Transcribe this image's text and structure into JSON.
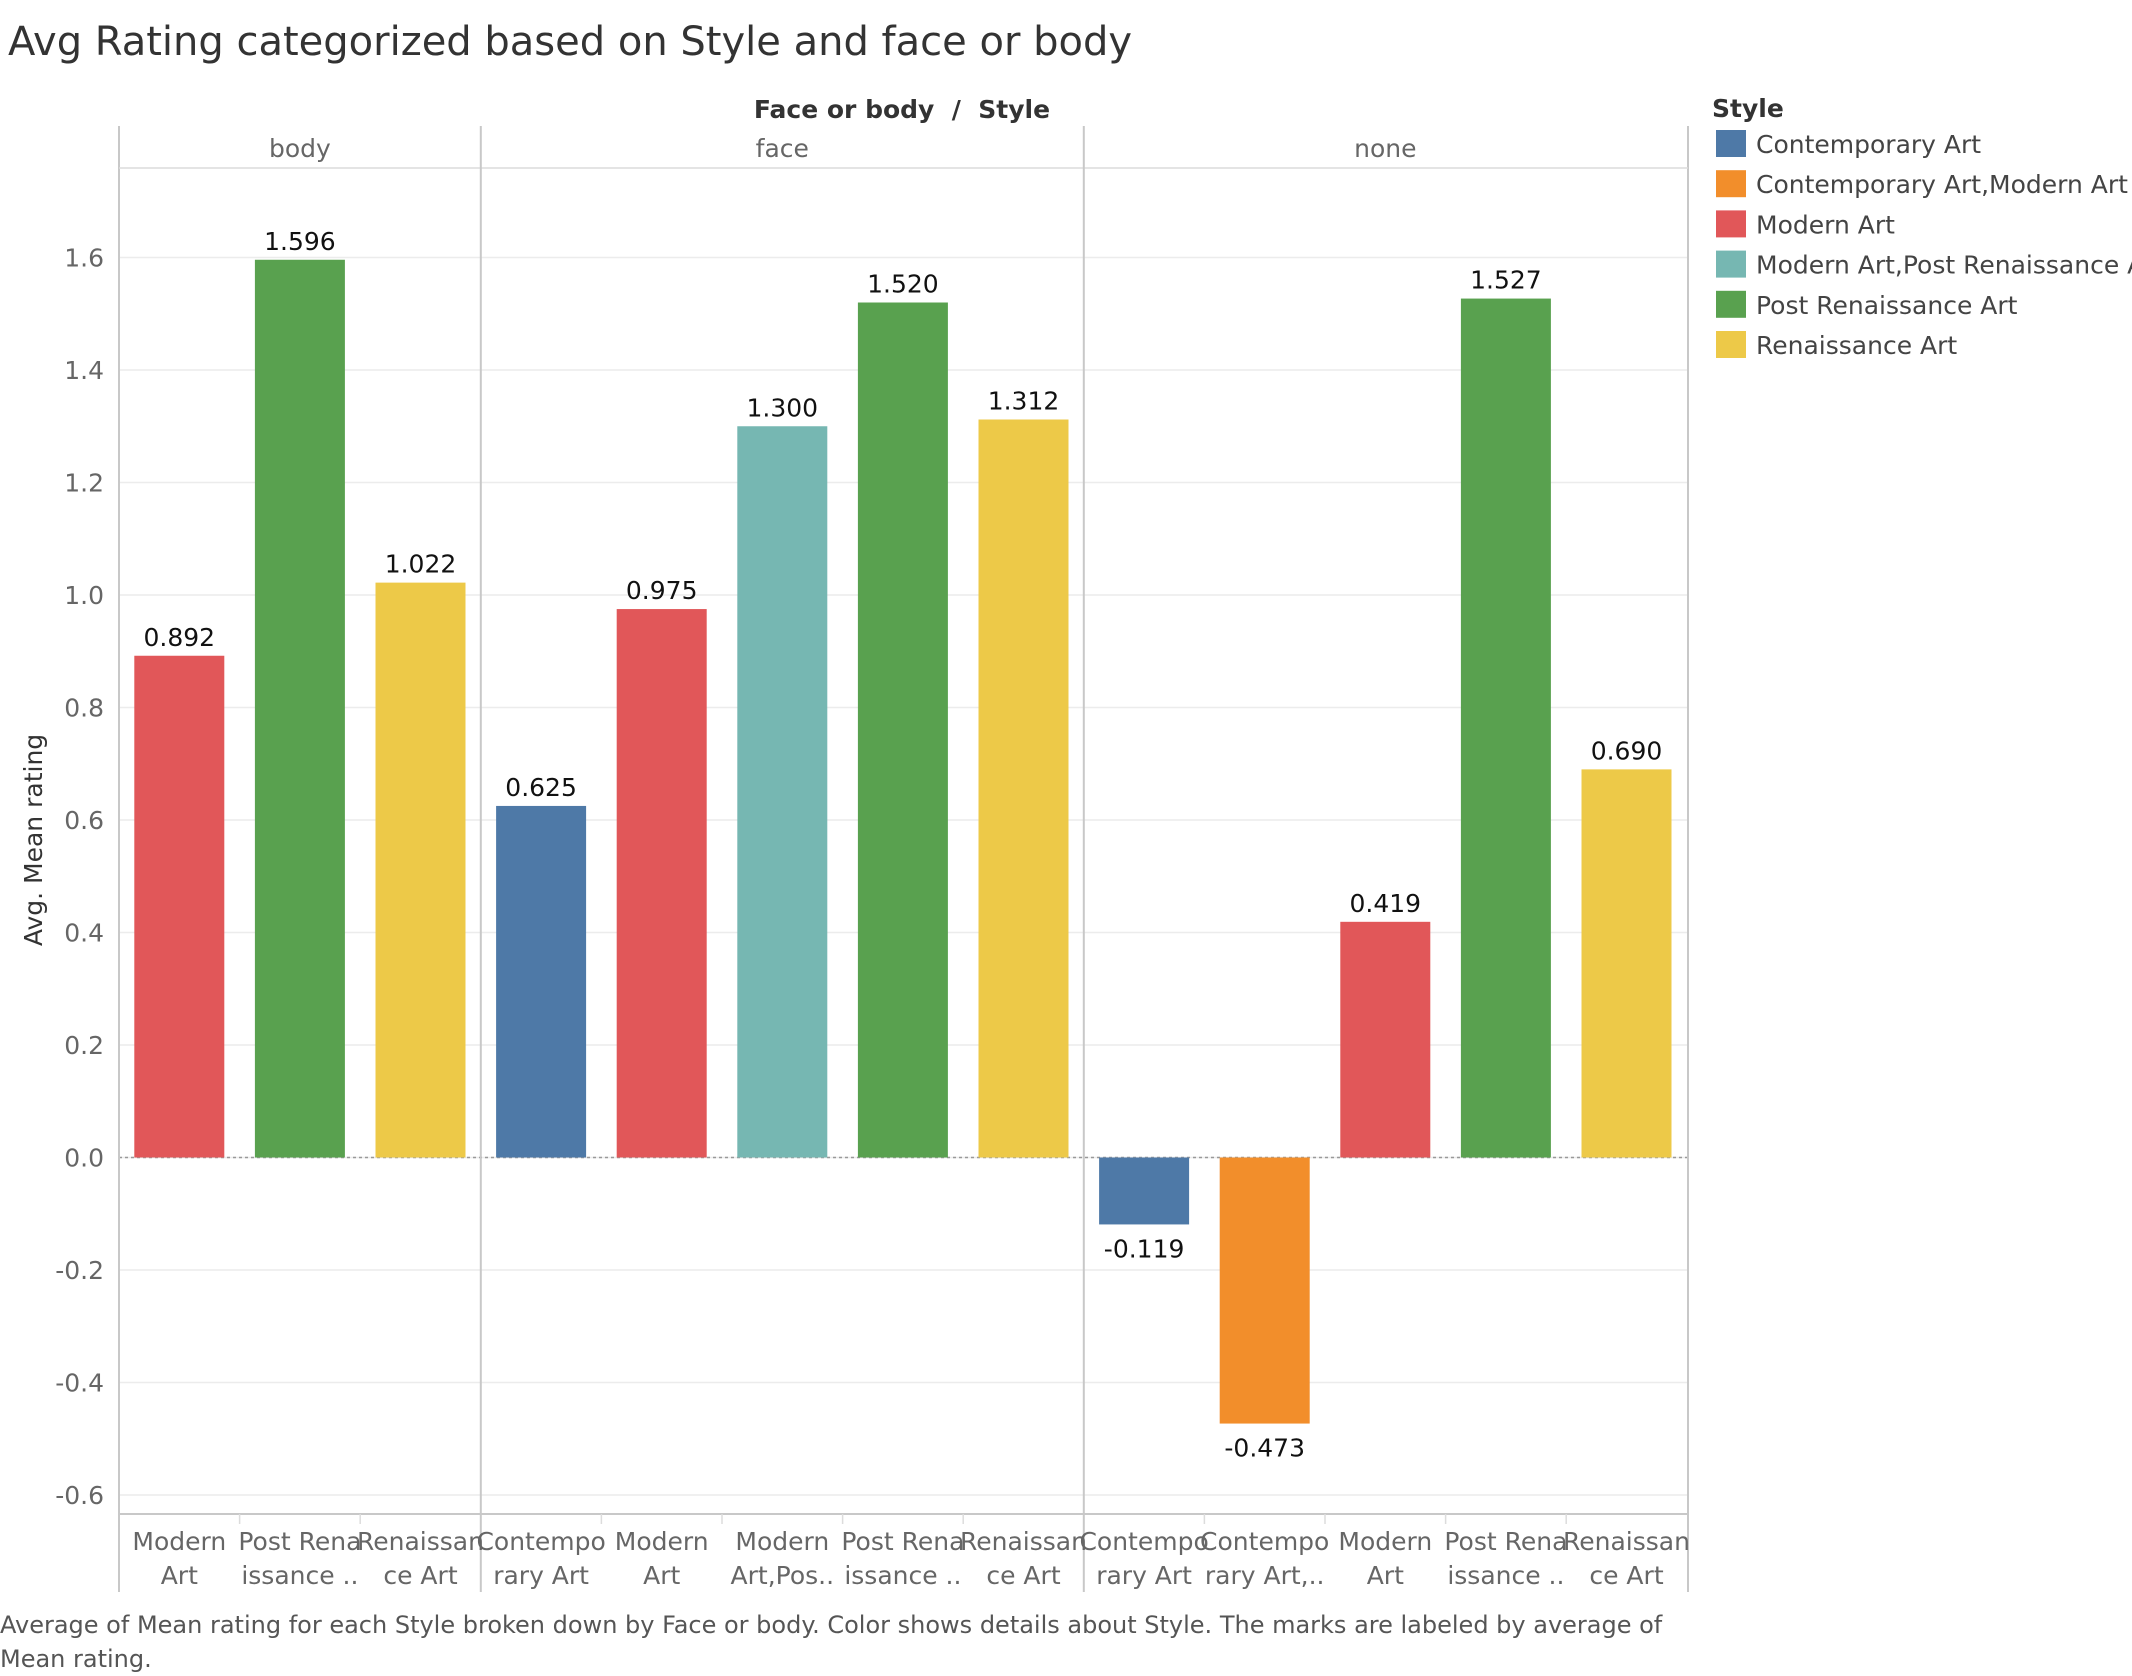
{
  "chart_data": {
    "type": "bar",
    "title": "Avg Rating categorized based on Style and face or body",
    "column_header": "Face or body  /  Style",
    "ylabel": "Avg. Mean rating",
    "ylim": [
      -0.65,
      1.8
    ],
    "yticks": [
      1.6,
      1.4,
      1.2,
      1.0,
      0.8,
      0.6,
      0.4,
      0.2,
      0.0,
      -0.2,
      -0.4,
      -0.6
    ],
    "ytick_labels": [
      "1.6",
      "1.4",
      "1.2",
      "1.0",
      "0.8",
      "0.6",
      "0.4",
      "0.2",
      "0.0",
      "-0.2",
      "-0.4",
      "-0.6"
    ],
    "grid": true,
    "legend": {
      "title": "Style",
      "position": "right",
      "items": [
        {
          "label": "Contemporary Art",
          "color": "#4e79a7"
        },
        {
          "label": "Contemporary Art,Modern Art",
          "color": "#f28e2b"
        },
        {
          "label": "Modern Art",
          "color": "#e15759"
        },
        {
          "label": "Modern Art,Post Renaissance Art",
          "color": "#76b7b2"
        },
        {
          "label": "Post Renaissance Art",
          "color": "#59a14f"
        },
        {
          "label": "Renaissance Art",
          "color": "#edc948"
        }
      ]
    },
    "panels": [
      {
        "name": "body",
        "bars": [
          {
            "label1": "Modern",
            "label2": "Art",
            "style": "Modern Art",
            "value": 0.892,
            "text": "0.892",
            "color": "#e15759"
          },
          {
            "label1": "Post Rena",
            "label2": "issance ..",
            "style": "Post Renaissance Art",
            "value": 1.596,
            "text": "1.596",
            "color": "#59a14f"
          },
          {
            "label1": "Renaissan",
            "label2": "ce Art",
            "style": "Renaissance Art",
            "value": 1.022,
            "text": "1.022",
            "color": "#edc948"
          }
        ]
      },
      {
        "name": "face",
        "bars": [
          {
            "label1": "Contempo",
            "label2": "rary Art",
            "style": "Contemporary Art",
            "value": 0.625,
            "text": "0.625",
            "color": "#4e79a7"
          },
          {
            "label1": "Modern",
            "label2": "Art",
            "style": "Modern Art",
            "value": 0.975,
            "text": "0.975",
            "color": "#e15759"
          },
          {
            "label1": "Modern",
            "label2": "Art,Pos..",
            "style": "Modern Art,Post Renaissance Art",
            "value": 1.3,
            "text": "1.300",
            "color": "#76b7b2"
          },
          {
            "label1": "Post Rena",
            "label2": "issance ..",
            "style": "Post Renaissance Art",
            "value": 1.52,
            "text": "1.520",
            "color": "#59a14f"
          },
          {
            "label1": "Renaissan",
            "label2": "ce Art",
            "style": "Renaissance Art",
            "value": 1.312,
            "text": "1.312",
            "color": "#edc948"
          }
        ]
      },
      {
        "name": "none",
        "bars": [
          {
            "label1": "Contempo",
            "label2": "rary Art",
            "style": "Contemporary Art",
            "value": -0.119,
            "text": "-0.119",
            "color": "#4e79a7"
          },
          {
            "label1": "Contempo",
            "label2": "rary Art,..",
            "style": "Contemporary Art,Modern Art",
            "value": -0.473,
            "text": "-0.473",
            "color": "#f28e2b"
          },
          {
            "label1": "Modern",
            "label2": "Art",
            "style": "Modern Art",
            "value": 0.419,
            "text": "0.419",
            "color": "#e15759"
          },
          {
            "label1": "Post Rena",
            "label2": "issance ..",
            "style": "Post Renaissance Art",
            "value": 1.527,
            "text": "1.527",
            "color": "#59a14f"
          },
          {
            "label1": "Renaissan",
            "label2": "ce Art",
            "style": "Renaissance Art",
            "value": 0.69,
            "text": "0.690",
            "color": "#edc948"
          }
        ]
      }
    ],
    "caption": "Average of Mean rating for each Style broken down by Face or body.  Color shows details about Style.  The marks are labeled by average of Mean rating."
  }
}
